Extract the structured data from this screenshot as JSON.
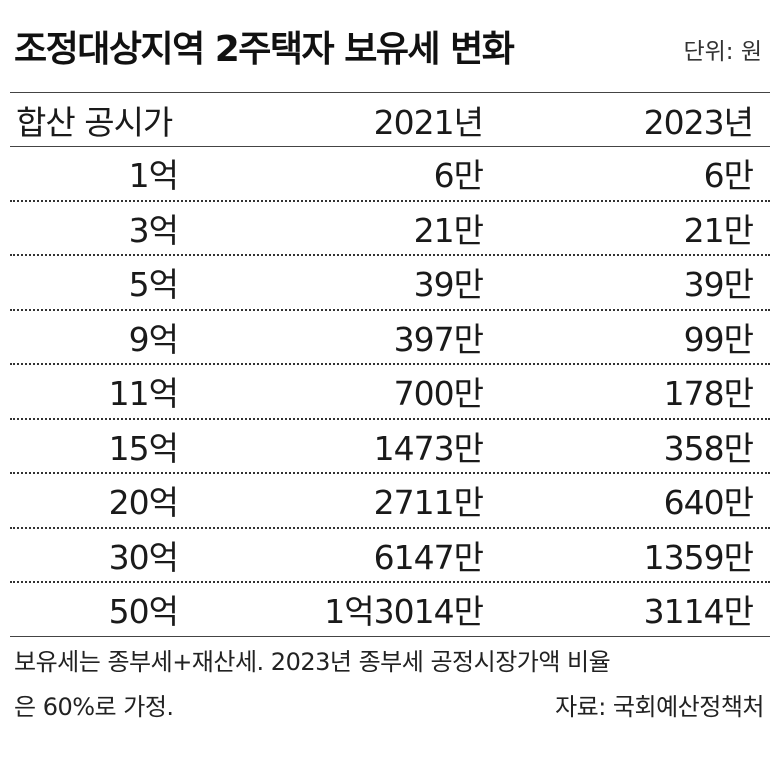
{
  "title": "조정대상지역 2주택자 보유세 변화",
  "unit": "단위: 원",
  "columns": [
    "합산 공시가",
    "2021년",
    "2023년"
  ],
  "rows": [
    [
      "1억",
      "6만",
      "6만"
    ],
    [
      "3억",
      "21만",
      "21만"
    ],
    [
      "5억",
      "39만",
      "39만"
    ],
    [
      "9억",
      "397만",
      "99만"
    ],
    [
      "11억",
      "700만",
      "178만"
    ],
    [
      "15억",
      "1473만",
      "358만"
    ],
    [
      "20억",
      "2711만",
      "640만"
    ],
    [
      "30억",
      "6147만",
      "1359만"
    ],
    [
      "50억",
      "1억3014만",
      "3114만"
    ]
  ],
  "note": {
    "line1": "보유세는 종부세+재산세. 2023년 종부세 공정시장가액 비율",
    "line2": "은 60%로 가정.",
    "source": "자료: 국회예산정책처"
  }
}
